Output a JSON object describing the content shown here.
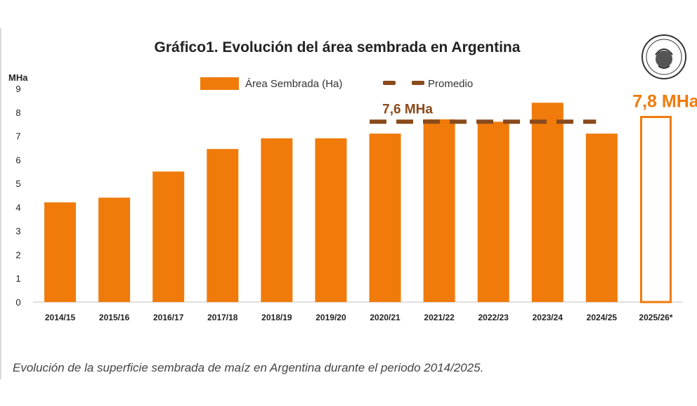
{
  "title": "Gráfico1. Evolución del área sembrada en Argentina",
  "legend": {
    "series_label": "Área Sembrada (Ha)",
    "average_label": "Promedio"
  },
  "caption": "Evolución de la superficie sembrada de maíz en Argentina durante el periodo 2014/2025.",
  "logo": {
    "text": "Bolsa de Cereales"
  },
  "colors": {
    "bar": "#f07b0b",
    "average": "#8a4a1c"
  },
  "chart_data": {
    "type": "bar",
    "ylabel": "MHa",
    "ylim": [
      0,
      9
    ],
    "yticks": [
      0,
      1,
      2,
      3,
      4,
      5,
      6,
      7,
      8,
      9
    ],
    "categories": [
      "2014/15",
      "2015/16",
      "2016/17",
      "2017/18",
      "2018/19",
      "2019/20",
      "2020/21",
      "2021/22",
      "2022/23",
      "2023/24",
      "2024/25",
      "2025/26*"
    ],
    "series": [
      {
        "name": "Área Sembrada (Ha)",
        "values": [
          4.2,
          4.4,
          5.5,
          6.45,
          6.9,
          6.9,
          7.1,
          7.7,
          7.6,
          8.4,
          7.1,
          7.8
        ]
      }
    ],
    "projected_category": "2025/26*",
    "projected_label": "7,8 MHa",
    "average": {
      "name": "Promedio",
      "value": 7.6,
      "label": "7,6 MHa",
      "from_category": "2020/21",
      "to_category": "2024/25"
    }
  }
}
